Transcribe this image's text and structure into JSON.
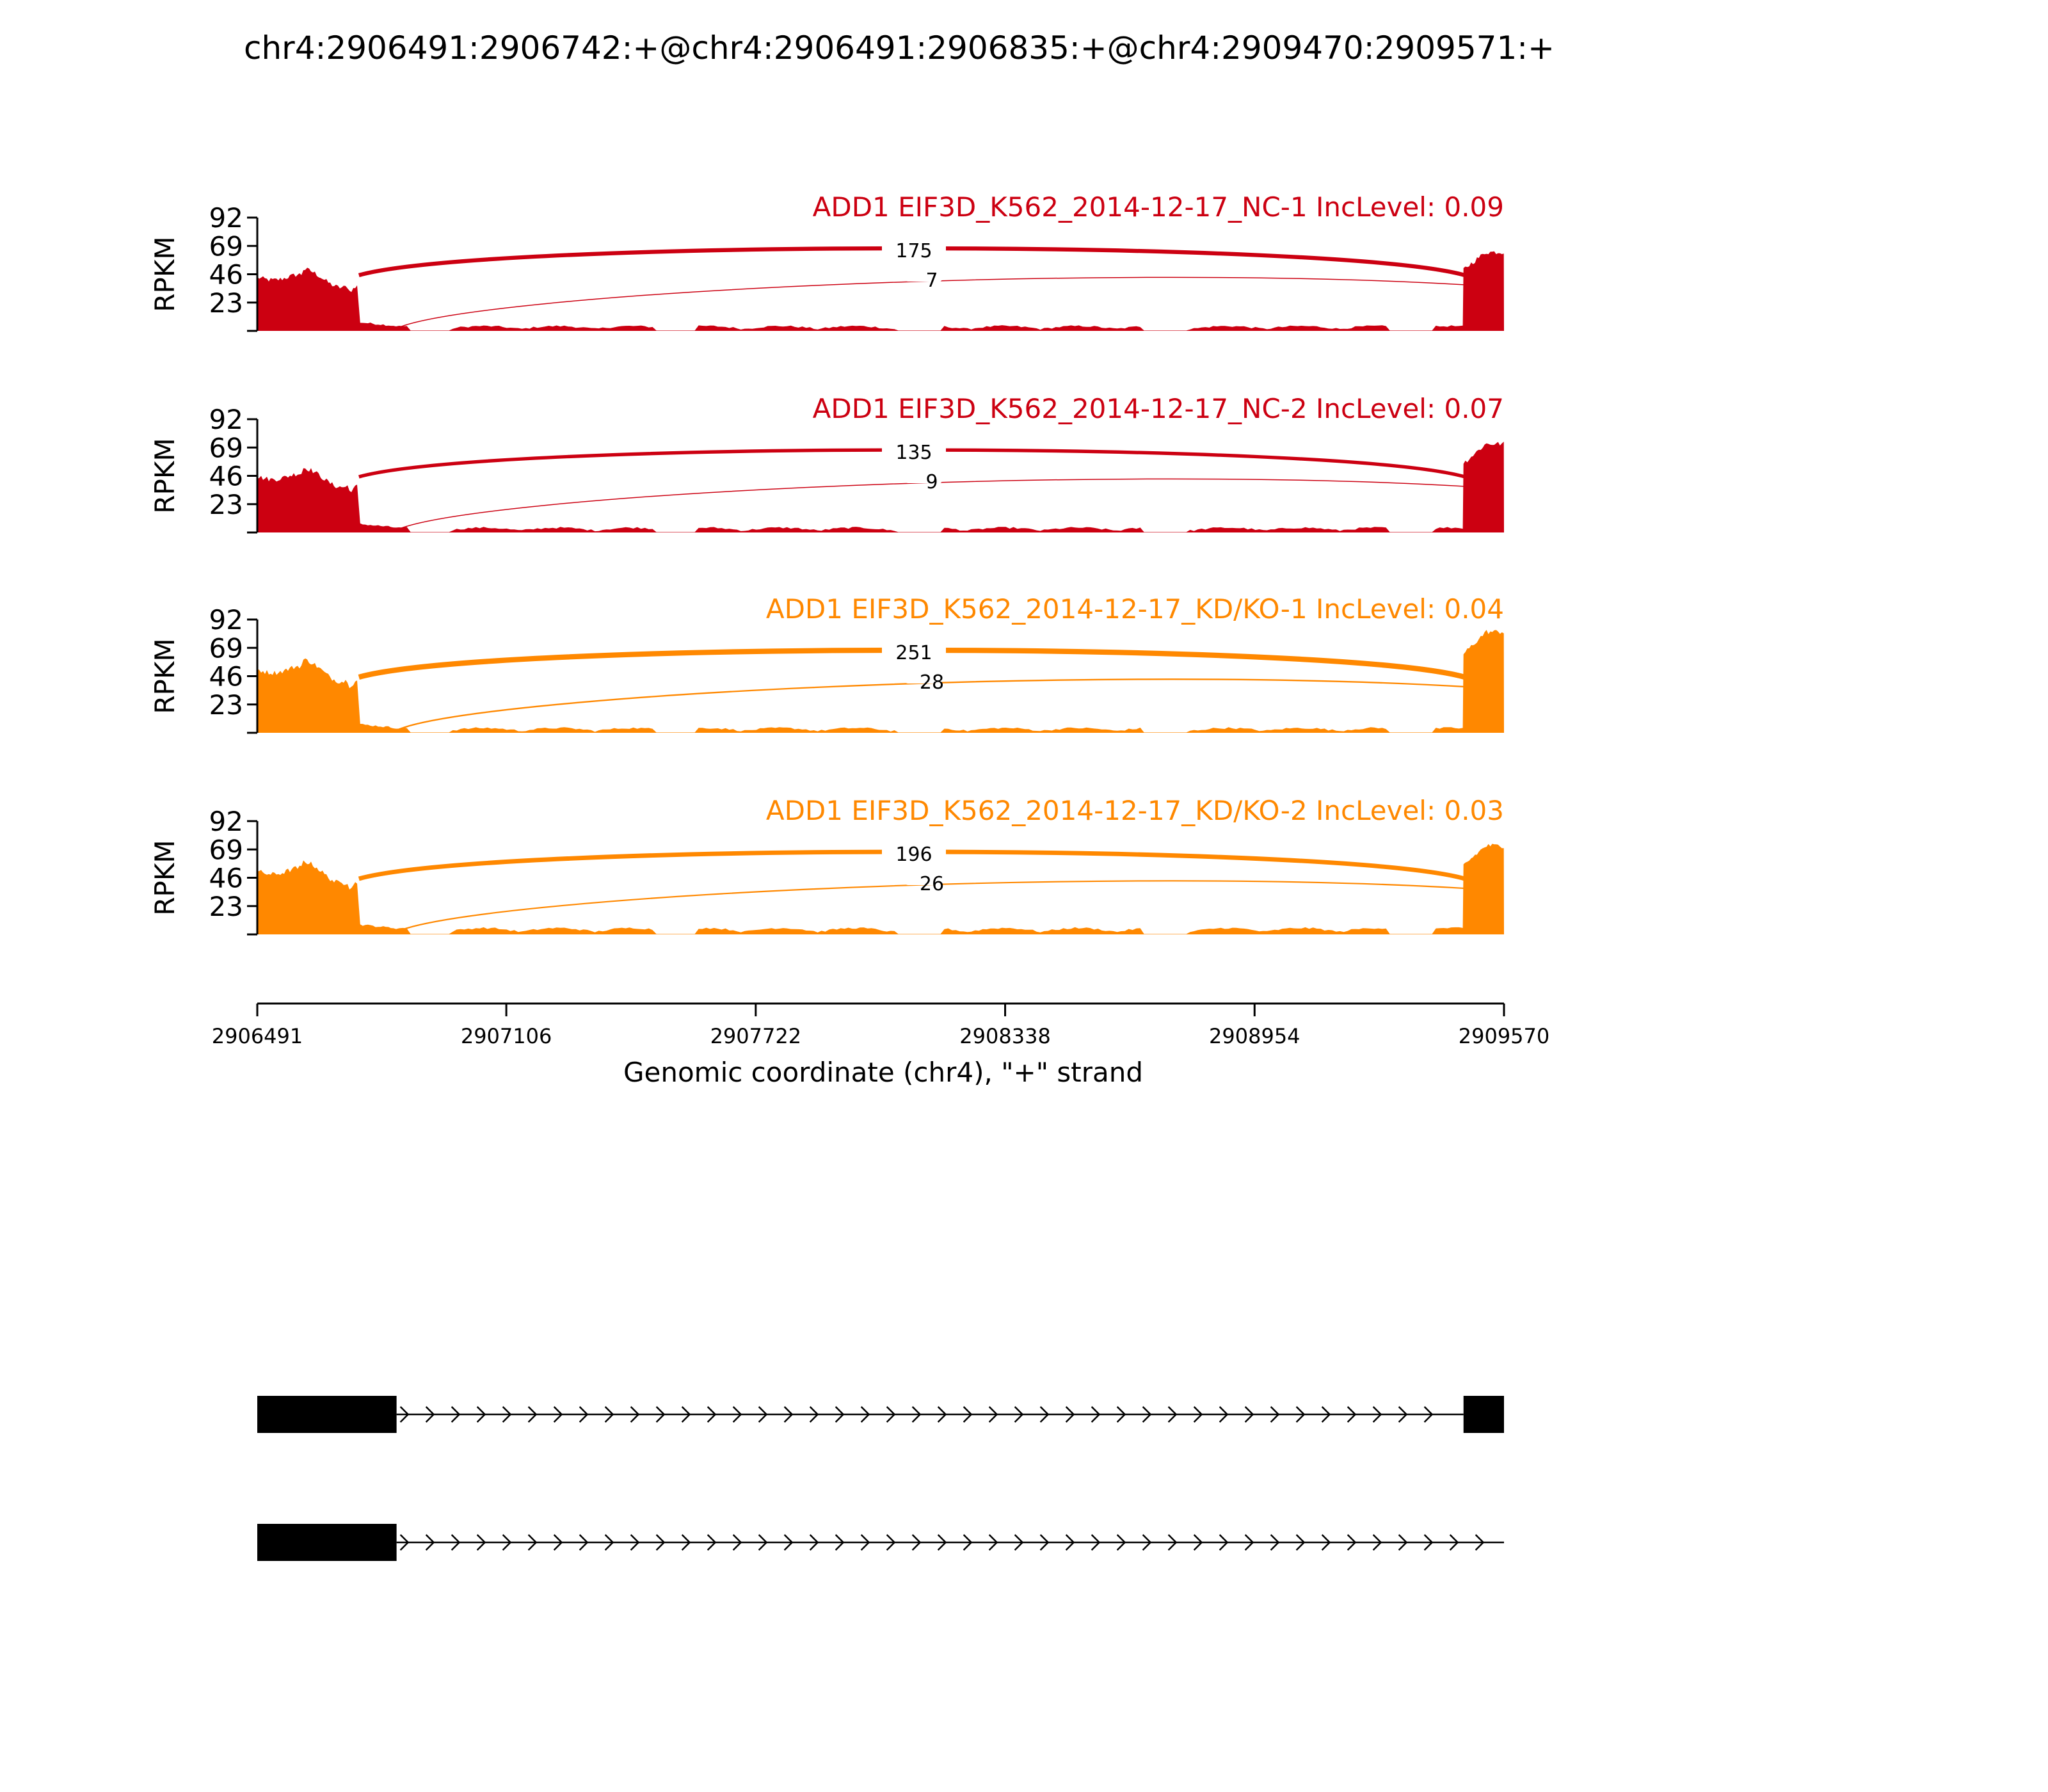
{
  "chart_data": {
    "type": "area",
    "title": "chr4:2906491:2906742:+@chr4:2906491:2906835:+@chr4:2909470:2909571:+",
    "ylabel": "RPKM",
    "xlabel": "Genomic coordinate (chr4), \"+\" strand",
    "xlim": [
      2906491,
      2909570
    ],
    "x_ticks": [
      "2906491",
      "2907106",
      "2907722",
      "2908338",
      "2908954",
      "2909570"
    ],
    "y_ticks": [
      "23",
      "46",
      "69",
      "92"
    ],
    "ylim": [
      0,
      92
    ],
    "colors": {
      "NC": "#cc0011",
      "KD": "#ff8800"
    },
    "exons": {
      "first_a": [
        2906491,
        2906742
      ],
      "first_b": [
        2906491,
        2906835
      ],
      "last": [
        2909470,
        2909570
      ]
    },
    "series": [
      {
        "name": "ADD1 EIF3D_K562_2014-12-17_NC-1 IncLevel: 0.09",
        "group": "NC",
        "inclusion_junction": 175,
        "skipping_junction": "7",
        "exon1_level": 44,
        "intron_level": 3,
        "exon3_level": 64
      },
      {
        "name": "ADD1 EIF3D_K562_2014-12-17_NC-2 IncLevel: 0.07",
        "group": "NC",
        "inclusion_junction": 135,
        "skipping_junction": "9",
        "exon1_level": 46,
        "intron_level": 3,
        "exon3_level": 72
      },
      {
        "name": "ADD1 EIF3D_K562_2014-12-17_KD/KO-1 IncLevel: 0.04",
        "group": "KD",
        "inclusion_junction": 251,
        "skipping_junction": "28",
        "exon1_level": 52,
        "intron_level": 3,
        "exon3_level": 82
      },
      {
        "name": "ADD1 EIF3D_K562_2014-12-17_KD/KO-2 IncLevel: 0.03",
        "group": "KD",
        "inclusion_junction": 196,
        "skipping_junction": "26",
        "exon1_level": 52,
        "intron_level": 4,
        "exon3_level": 72
      }
    ],
    "transcripts": [
      {
        "exons": [
          [
            2906491,
            2906835
          ],
          [
            2909470,
            2909570
          ]
        ]
      },
      {
        "exons": [
          [
            2906491,
            2906835
          ]
        ],
        "intron_end": 2909570
      }
    ]
  }
}
